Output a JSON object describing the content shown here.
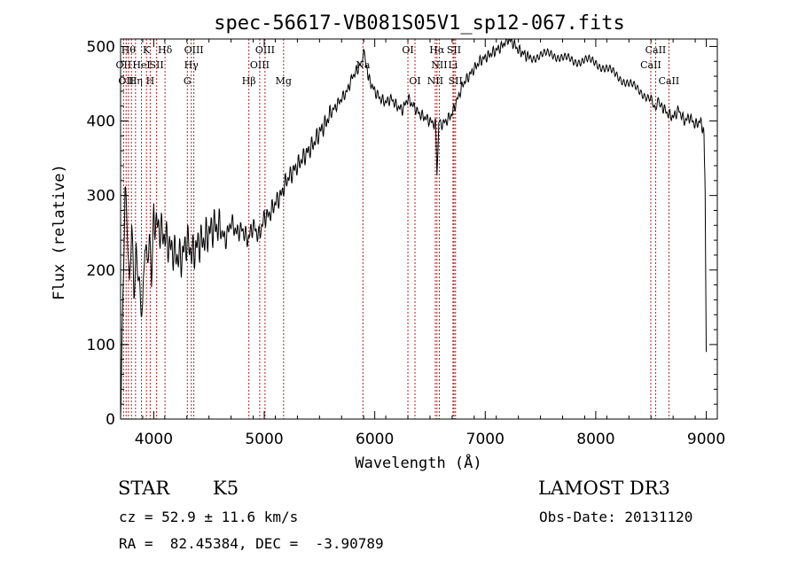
{
  "chart_data": {
    "type": "line",
    "title": "spec-56617-VB081S05V1_sp12-067.fits",
    "xlabel": "Wavelength (Å)",
    "ylabel": "Flux (relative)",
    "xlim": [
      3700,
      9100
    ],
    "ylim": [
      0,
      510
    ],
    "xticks": [
      4000,
      5000,
      6000,
      7000,
      8000,
      9000
    ],
    "yticks": [
      0,
      100,
      200,
      300,
      400,
      500
    ],
    "series": [
      {
        "name": "flux",
        "x": [
          3700,
          3720,
          3740,
          3760,
          3780,
          3800,
          3820,
          3840,
          3860,
          3880,
          3900,
          3920,
          3940,
          3960,
          3980,
          4000,
          4050,
          4100,
          4150,
          4200,
          4250,
          4300,
          4350,
          4400,
          4450,
          4500,
          4550,
          4600,
          4650,
          4700,
          4750,
          4800,
          4850,
          4900,
          4950,
          5000,
          5050,
          5100,
          5150,
          5200,
          5250,
          5300,
          5350,
          5400,
          5450,
          5500,
          5550,
          5600,
          5650,
          5700,
          5750,
          5800,
          5850,
          5880,
          5900,
          5920,
          5950,
          6000,
          6050,
          6100,
          6150,
          6200,
          6250,
          6300,
          6350,
          6400,
          6450,
          6500,
          6550,
          6563,
          6580,
          6600,
          6650,
          6700,
          6750,
          6800,
          6850,
          6900,
          6950,
          7000,
          7050,
          7100,
          7150,
          7200,
          7250,
          7300,
          7350,
          7400,
          7500,
          7600,
          7700,
          7800,
          7900,
          8000,
          8100,
          8200,
          8300,
          8400,
          8500,
          8540,
          8560,
          8600,
          8650,
          8700,
          8750,
          8800,
          8850,
          8900,
          8950,
          8980,
          8990,
          9000
        ],
        "y": [
          10,
          150,
          300,
          250,
          160,
          260,
          170,
          230,
          210,
          170,
          150,
          240,
          200,
          230,
          180,
          270,
          255,
          245,
          230,
          220,
          215,
          240,
          220,
          235,
          240,
          250,
          260,
          255,
          240,
          265,
          250,
          255,
          240,
          260,
          245,
          270,
          275,
          290,
          300,
          320,
          330,
          340,
          350,
          360,
          370,
          385,
          395,
          410,
          420,
          430,
          440,
          460,
          470,
          480,
          495,
          475,
          455,
          440,
          430,
          425,
          430,
          420,
          415,
          430,
          420,
          410,
          405,
          400,
          395,
          330,
          400,
          395,
          400,
          410,
          430,
          450,
          460,
          470,
          480,
          485,
          490,
          495,
          500,
          510,
          505,
          495,
          490,
          485,
          488,
          490,
          485,
          480,
          482,
          478,
          470,
          460,
          450,
          440,
          430,
          410,
          425,
          420,
          410,
          405,
          415,
          400,
          405,
          395,
          400,
          380,
          300,
          90
        ]
      }
    ],
    "lines": [
      {
        "wave": 3727,
        "label": "OII",
        "row": 1
      },
      {
        "wave": 3750,
        "label": "OII",
        "row": 2
      },
      {
        "wave": 3771,
        "label": "Hθ",
        "row": 0
      },
      {
        "wave": 3798,
        "label": "",
        "row": -1
      },
      {
        "wave": 3835,
        "label": "Hη",
        "row": 2
      },
      {
        "wave": 3889,
        "label": "HeI",
        "row": 1
      },
      {
        "wave": 3934,
        "label": "K",
        "row": 0
      },
      {
        "wave": 3968,
        "label": "H",
        "row": 2
      },
      {
        "wave": 4026,
        "label": "SII",
        "row": 1
      },
      {
        "wave": 4102,
        "label": "Hδ",
        "row": 0
      },
      {
        "wave": 4304,
        "label": "G",
        "row": 2
      },
      {
        "wave": 4340,
        "label": "Hγ",
        "row": 1
      },
      {
        "wave": 4363,
        "label": "OIII",
        "row": 0
      },
      {
        "wave": 4861,
        "label": "Hβ",
        "row": 2
      },
      {
        "wave": 4959,
        "label": "OIII",
        "row": 1
      },
      {
        "wave": 5007,
        "label": "OIII",
        "row": 0
      },
      {
        "wave": 5175,
        "label": "Mg",
        "row": 2
      },
      {
        "wave": 5893,
        "label": "Na",
        "row": 1
      },
      {
        "wave": 6300,
        "label": "OI",
        "row": 0
      },
      {
        "wave": 6364,
        "label": "OI",
        "row": 2
      },
      {
        "wave": 6548,
        "label": "NII",
        "row": 2
      },
      {
        "wave": 6563,
        "label": "Hα",
        "row": 0
      },
      {
        "wave": 6584,
        "label": "NII",
        "row": 1
      },
      {
        "wave": 6708,
        "label": "Li",
        "row": 1
      },
      {
        "wave": 6717,
        "label": "SII",
        "row": 0
      },
      {
        "wave": 6731,
        "label": "SII",
        "row": 2
      },
      {
        "wave": 8498,
        "label": "CaII",
        "row": 1
      },
      {
        "wave": 8542,
        "label": "CaII",
        "row": 0
      },
      {
        "wave": 8662,
        "label": "CaII",
        "row": 2
      }
    ]
  },
  "info": {
    "object_class": "STAR",
    "subclass": "K5",
    "survey": "LAMOST DR3",
    "cz_text": "cz = 52.9 ± 11.6 km/s",
    "obs_date_text": "Obs-Date: 20131120",
    "radec_text": "RA =  82.45384, DEC =  -3.90789"
  },
  "colors": {
    "line_marker": "#b22222",
    "spectrum": "#000000",
    "axes": "#000000"
  }
}
